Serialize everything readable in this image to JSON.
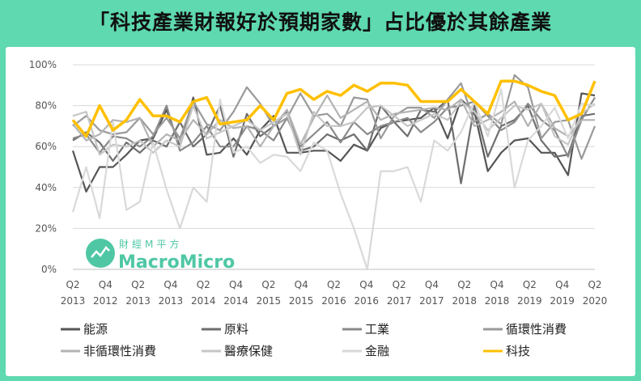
{
  "title": "「科技產業財報好於預期家數」占比優於其餘產業",
  "watermark": {
    "cn": "財經M平方",
    "en": "MacroMicro"
  },
  "chart_data": {
    "type": "line",
    "title": "「科技產業財報好於預期家數」占比優於其餘產業",
    "ylim": [
      0,
      100
    ],
    "yticks": [
      "0%",
      "20%",
      "40%",
      "60%",
      "80%",
      "100%"
    ],
    "x_tick_labels": [
      [
        "Q2",
        "2013"
      ],
      [
        "Q4",
        "2012"
      ],
      [
        "Q2",
        "2013"
      ],
      [
        "Q4",
        "2013"
      ],
      [
        "Q2",
        "2014"
      ],
      [
        "Q4",
        "2014"
      ],
      [
        "Q2",
        "2015"
      ],
      [
        "Q4",
        "2015"
      ],
      [
        "Q2",
        "2016"
      ],
      [
        "Q4",
        "2016"
      ],
      [
        "Q2",
        "2017"
      ],
      [
        "Q4",
        "2017"
      ],
      [
        "Q2",
        "2018"
      ],
      [
        "Q4",
        "2018"
      ],
      [
        "Q2",
        "2019"
      ],
      [
        "Q4",
        "2019"
      ],
      [
        "Q2",
        "2020"
      ]
    ],
    "series": [
      {
        "name": "能源",
        "color": "#555555",
        "values": [
          58,
          38,
          50,
          50,
          56,
          63,
          64,
          78,
          60,
          84,
          56,
          57,
          64,
          56,
          68,
          75,
          57,
          57,
          58,
          58,
          53,
          61,
          58,
          69,
          72,
          73,
          74,
          79,
          64,
          83,
          77,
          48,
          57,
          63,
          64,
          57,
          57,
          46,
          86,
          85
        ]
      },
      {
        "name": "原料",
        "color": "#6e6e6e",
        "values": [
          63,
          67,
          62,
          53,
          62,
          57,
          63,
          60,
          72,
          60,
          66,
          80,
          55,
          76,
          65,
          70,
          77,
          58,
          60,
          66,
          63,
          66,
          58,
          80,
          72,
          65,
          78,
          77,
          83,
          42,
          80,
          55,
          70,
          73,
          80,
          63,
          55,
          56,
          75,
          76
        ]
      },
      {
        "name": "工業",
        "color": "#8a8a8a",
        "values": [
          64,
          66,
          57,
          65,
          64,
          60,
          65,
          80,
          58,
          62,
          70,
          60,
          60,
          70,
          68,
          63,
          74,
          60,
          66,
          72,
          62,
          72,
          66,
          70,
          72,
          74,
          67,
          72,
          79,
          80,
          82,
          75,
          68,
          72,
          81,
          73,
          68,
          55,
          73,
          84
        ]
      },
      {
        "name": "循環性消費",
        "color": "#9a9a9a",
        "values": [
          70,
          75,
          68,
          66,
          67,
          74,
          66,
          74,
          64,
          82,
          71,
          68,
          77,
          89,
          81,
          70,
          74,
          86,
          75,
          76,
          70,
          84,
          83,
          64,
          75,
          79,
          79,
          74,
          83,
          91,
          72,
          76,
          71,
          95,
          89,
          64,
          72,
          73,
          54,
          70
        ]
      },
      {
        "name": "非循環性消費",
        "color": "#b3b3b3",
        "values": [
          71,
          63,
          66,
          73,
          72,
          74,
          60,
          66,
          63,
          73,
          66,
          73,
          69,
          70,
          60,
          70,
          78,
          61,
          74,
          85,
          74,
          78,
          82,
          73,
          76,
          77,
          78,
          79,
          78,
          83,
          70,
          73,
          77,
          82,
          70,
          81,
          69,
          65,
          73,
          73
        ]
      },
      {
        "name": "醫療保健",
        "color": "#c6c6c6",
        "values": [
          75,
          77,
          56,
          61,
          60,
          63,
          57,
          63,
          60,
          80,
          64,
          67,
          70,
          73,
          68,
          72,
          76,
          56,
          77,
          70,
          70,
          72,
          79,
          80,
          75,
          70,
          73,
          76,
          73,
          82,
          77,
          68,
          74,
          80,
          78,
          81,
          65,
          61,
          76,
          81
        ]
      },
      {
        "name": "金融",
        "color": "#d9d9d9",
        "values": [
          28,
          50,
          25,
          72,
          29,
          33,
          62,
          39,
          20,
          40,
          33,
          83,
          57,
          60,
          52,
          56,
          55,
          48,
          62,
          58,
          37,
          20,
          0,
          48,
          48,
          50,
          33,
          63,
          58,
          67,
          82,
          65,
          88,
          40,
          63,
          70,
          79,
          64,
          81,
          80
        ]
      },
      {
        "name": "科技",
        "color": "#ffc000",
        "values": [
          73,
          65,
          80,
          68,
          73,
          83,
          75,
          75,
          72,
          82,
          84,
          71,
          72,
          73,
          80,
          73,
          86,
          88,
          83,
          87,
          85,
          90,
          87,
          91,
          91,
          90,
          82,
          82,
          82,
          88,
          82,
          76,
          92,
          92,
          90,
          87,
          85,
          73,
          76,
          92
        ]
      }
    ]
  }
}
